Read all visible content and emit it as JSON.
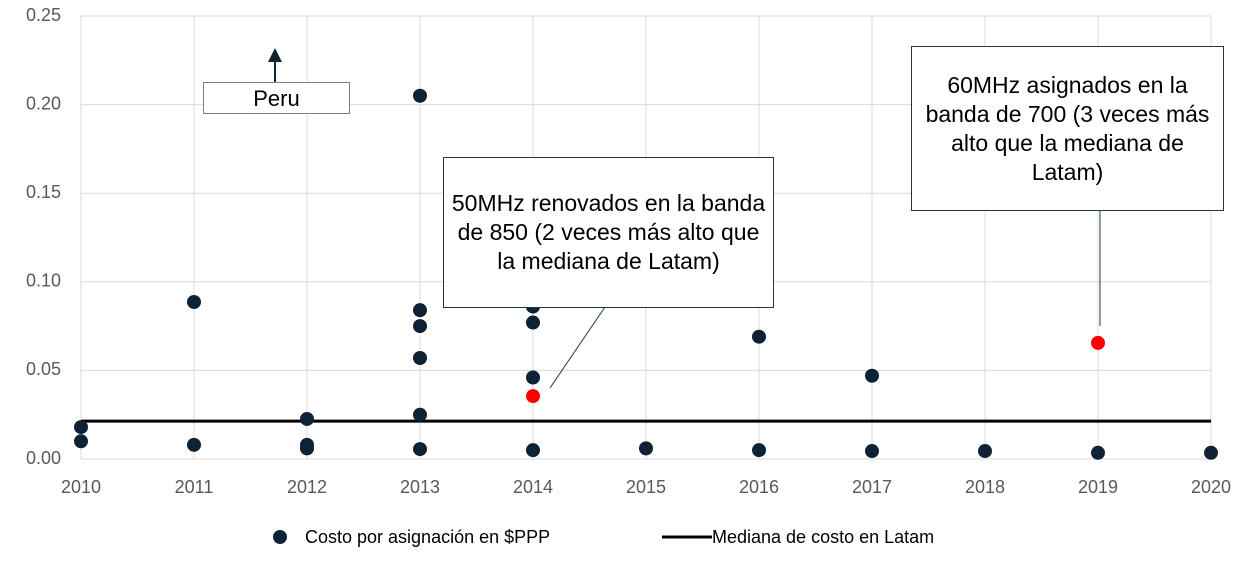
{
  "chart_data": {
    "type": "scatter",
    "xlim": [
      2010,
      2020
    ],
    "xticks": [
      2010,
      2011,
      2012,
      2013,
      2014,
      2015,
      2016,
      2017,
      2018,
      2019,
      2020
    ],
    "ylim": [
      0,
      0.25
    ],
    "yticks": [
      {
        "value": 0,
        "label": "0.00"
      },
      0.05,
      {
        "value": 0.1,
        "label": "0.10"
      },
      0.15,
      {
        "value": 0.2,
        "label": "0.20"
      },
      0.25
    ],
    "grid": true,
    "series": [
      {
        "name": "Costo por asignación en $PPP",
        "color": "#0d2235",
        "type": "scatter",
        "x": [
          2010,
          2010,
          2011,
          2011,
          2012,
          2012,
          2012,
          2013,
          2013,
          2013,
          2013,
          2013,
          2013,
          2014,
          2014,
          2014,
          2014,
          2014,
          2015,
          2016,
          2016,
          2017,
          2017,
          2018,
          2019,
          2019,
          2020
        ],
        "values": [
          0.018,
          0.01,
          0.0886,
          0.008,
          0.0226,
          0.008,
          0.006,
          0.205,
          0.084,
          0.075,
          0.057,
          0.025,
          0.0056,
          0.086,
          0.077,
          0.046,
          0.0355,
          0.005,
          0.006,
          0.069,
          0.005,
          0.047,
          0.0045,
          0.0045,
          0.0655,
          0.0035,
          0.0035
        ],
        "point_colors": [
          "#0d2235",
          "#0d2235",
          "#0d2235",
          "#0d2235",
          "#0d2235",
          "#0d2235",
          "#0d2235",
          "#0d2235",
          "#0d2235",
          "#0d2235",
          "#0d2235",
          "#0d2235",
          "#0d2235",
          "#0d2235",
          "#0d2235",
          "#0d2235",
          "#ff0000",
          "#0d2235",
          "#0d2235",
          "#0d2235",
          "#0d2235",
          "#0d2235",
          "#0d2235",
          "#0d2235",
          "#ff0000",
          "#0d2235",
          "#0d2235"
        ]
      },
      {
        "name": "Mediana de costo en Latam",
        "color": "#000000",
        "type": "line",
        "x": [
          2010,
          2020
        ],
        "values": [
          0.0214,
          0.0214
        ]
      }
    ],
    "annotations": [
      {
        "text": "Peru"
      },
      {
        "text": "50MHz renovados en la banda de 850 (2 veces más alto que la mediana de Latam)"
      },
      {
        "text": "60MHz asignados en la banda de 700 (3 veces más alto que la mediana de Latam)"
      }
    ]
  }
}
